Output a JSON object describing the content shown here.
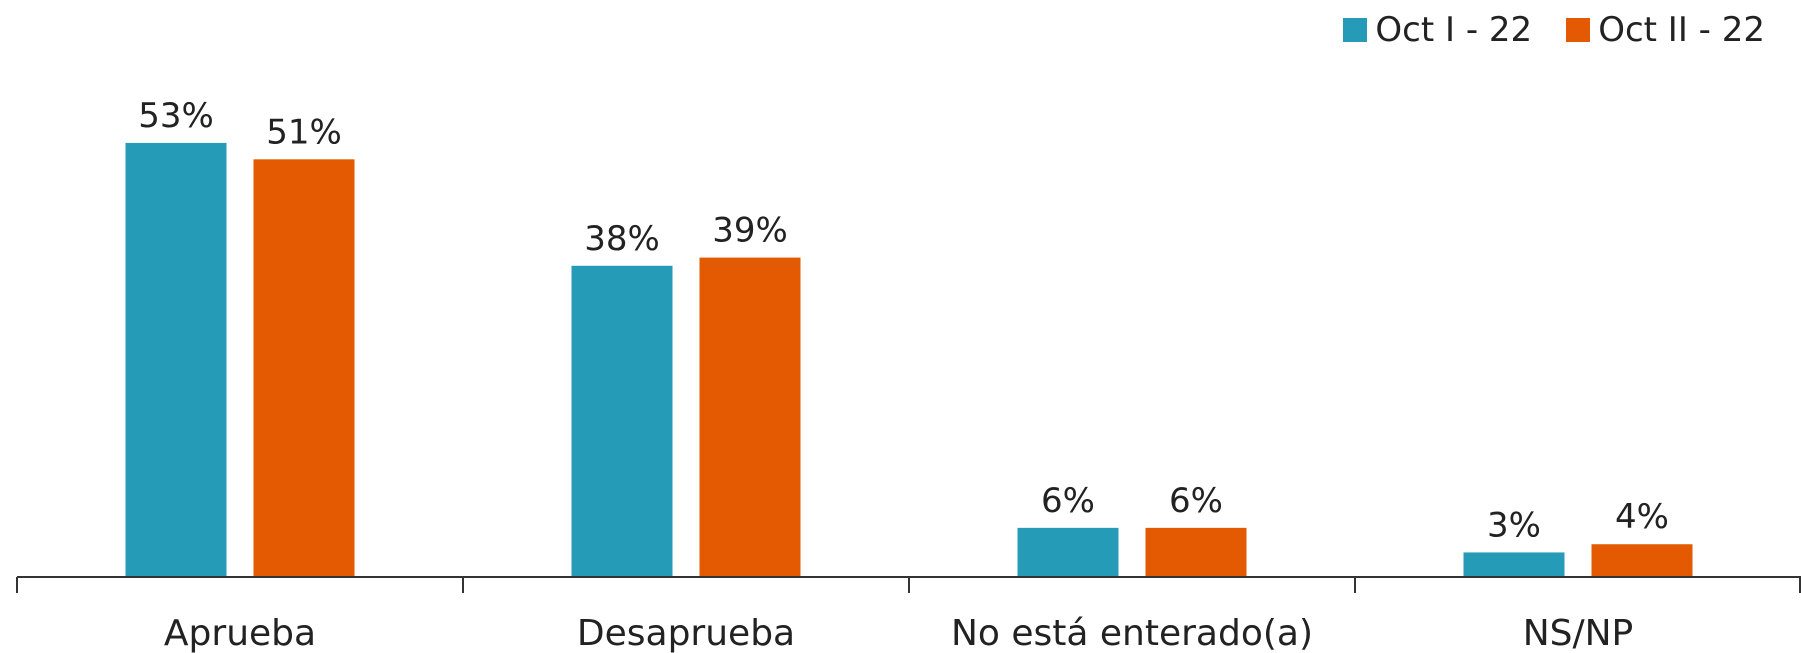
{
  "chart_data": {
    "type": "bar",
    "title": "",
    "xlabel": "",
    "ylabel": "",
    "categories": [
      "Aprueba",
      "Desaprueba",
      "No está enterado(a)",
      "NS/NP"
    ],
    "series": [
      {
        "name": "Oct I - 22",
        "values": [
          53,
          38,
          6,
          3
        ],
        "labels": [
          "53%",
          "38%",
          "6%",
          "3%"
        ],
        "color": "#269bb8"
      },
      {
        "name": "Oct II - 22",
        "values": [
          51,
          39,
          6,
          4
        ],
        "labels": [
          "51%",
          "39%",
          "6%",
          "4%"
        ],
        "color": "#e35a02"
      }
    ],
    "ylim": [
      0,
      60
    ],
    "grid": false,
    "legend_position": "top-right"
  }
}
